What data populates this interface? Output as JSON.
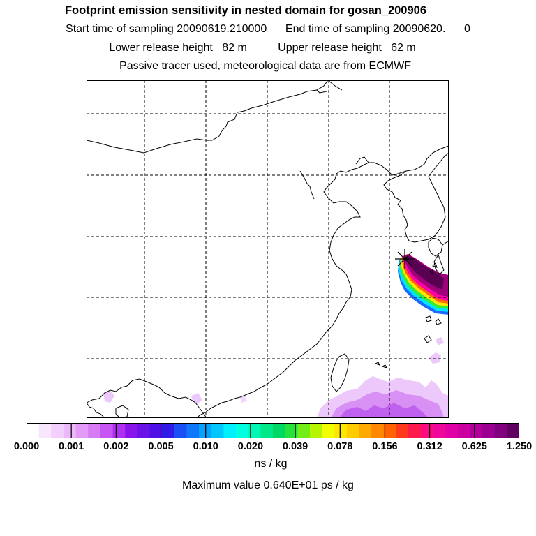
{
  "header": {
    "title": "Footprint emission sensitivity in nested domain for gosan_200906",
    "sampling_line": "Start time of sampling 20090619.210000      End time of sampling 20090620.      0",
    "release_line": "Lower release height   82 m          Upper release height   62 m",
    "tracer_line": "Passive tracer used, meteorological data are from ECMWF"
  },
  "colorbar": {
    "tick_labels": [
      "0.000",
      "0.001",
      "0.002",
      "0.005",
      "0.010",
      "0.020",
      "0.039",
      "0.078",
      "0.156",
      "0.312",
      "0.625",
      "1.250"
    ],
    "units": "ns / kg",
    "colors": [
      "#ffffff",
      "#f8e6fc",
      "#f2d0fb",
      "#ebb8fa",
      "#e39bf8",
      "#d77bf5",
      "#c655f3",
      "#b02ff0",
      "#8a15ea",
      "#6a12e8",
      "#4d10e6",
      "#2f1ae6",
      "#1a4ff5",
      "#0f78fa",
      "#08a2fc",
      "#03c6fe",
      "#00f0ff",
      "#00ffe0",
      "#00f6b4",
      "#00e88a",
      "#00d865",
      "#26e23a",
      "#73ed18",
      "#b6f500",
      "#f2ff00",
      "#fde600",
      "#ffcc00",
      "#ffaa00",
      "#ff8800",
      "#ff6200",
      "#ff3a1a",
      "#ff1a4d",
      "#ff0a80",
      "#f0089a",
      "#e000a6",
      "#cc00a0",
      "#b4009a",
      "#9c0090",
      "#800080",
      "#600060"
    ]
  },
  "map": {
    "receptor_marker": "gosan-receptor",
    "plume_colors": {
      "core": "#5a0052",
      "inner": "#a0007a",
      "mid": "#ff00aa",
      "orange": "#ff6a00",
      "yellow": "#ffe600",
      "green": "#33ee33",
      "cyan": "#00e5ff",
      "blue": "#1a6aff",
      "light": "#d890f5",
      "pale": "#ecc8fb"
    }
  },
  "footer": {
    "maximum_value": "Maximum value  0.640E+01 ps / kg"
  }
}
